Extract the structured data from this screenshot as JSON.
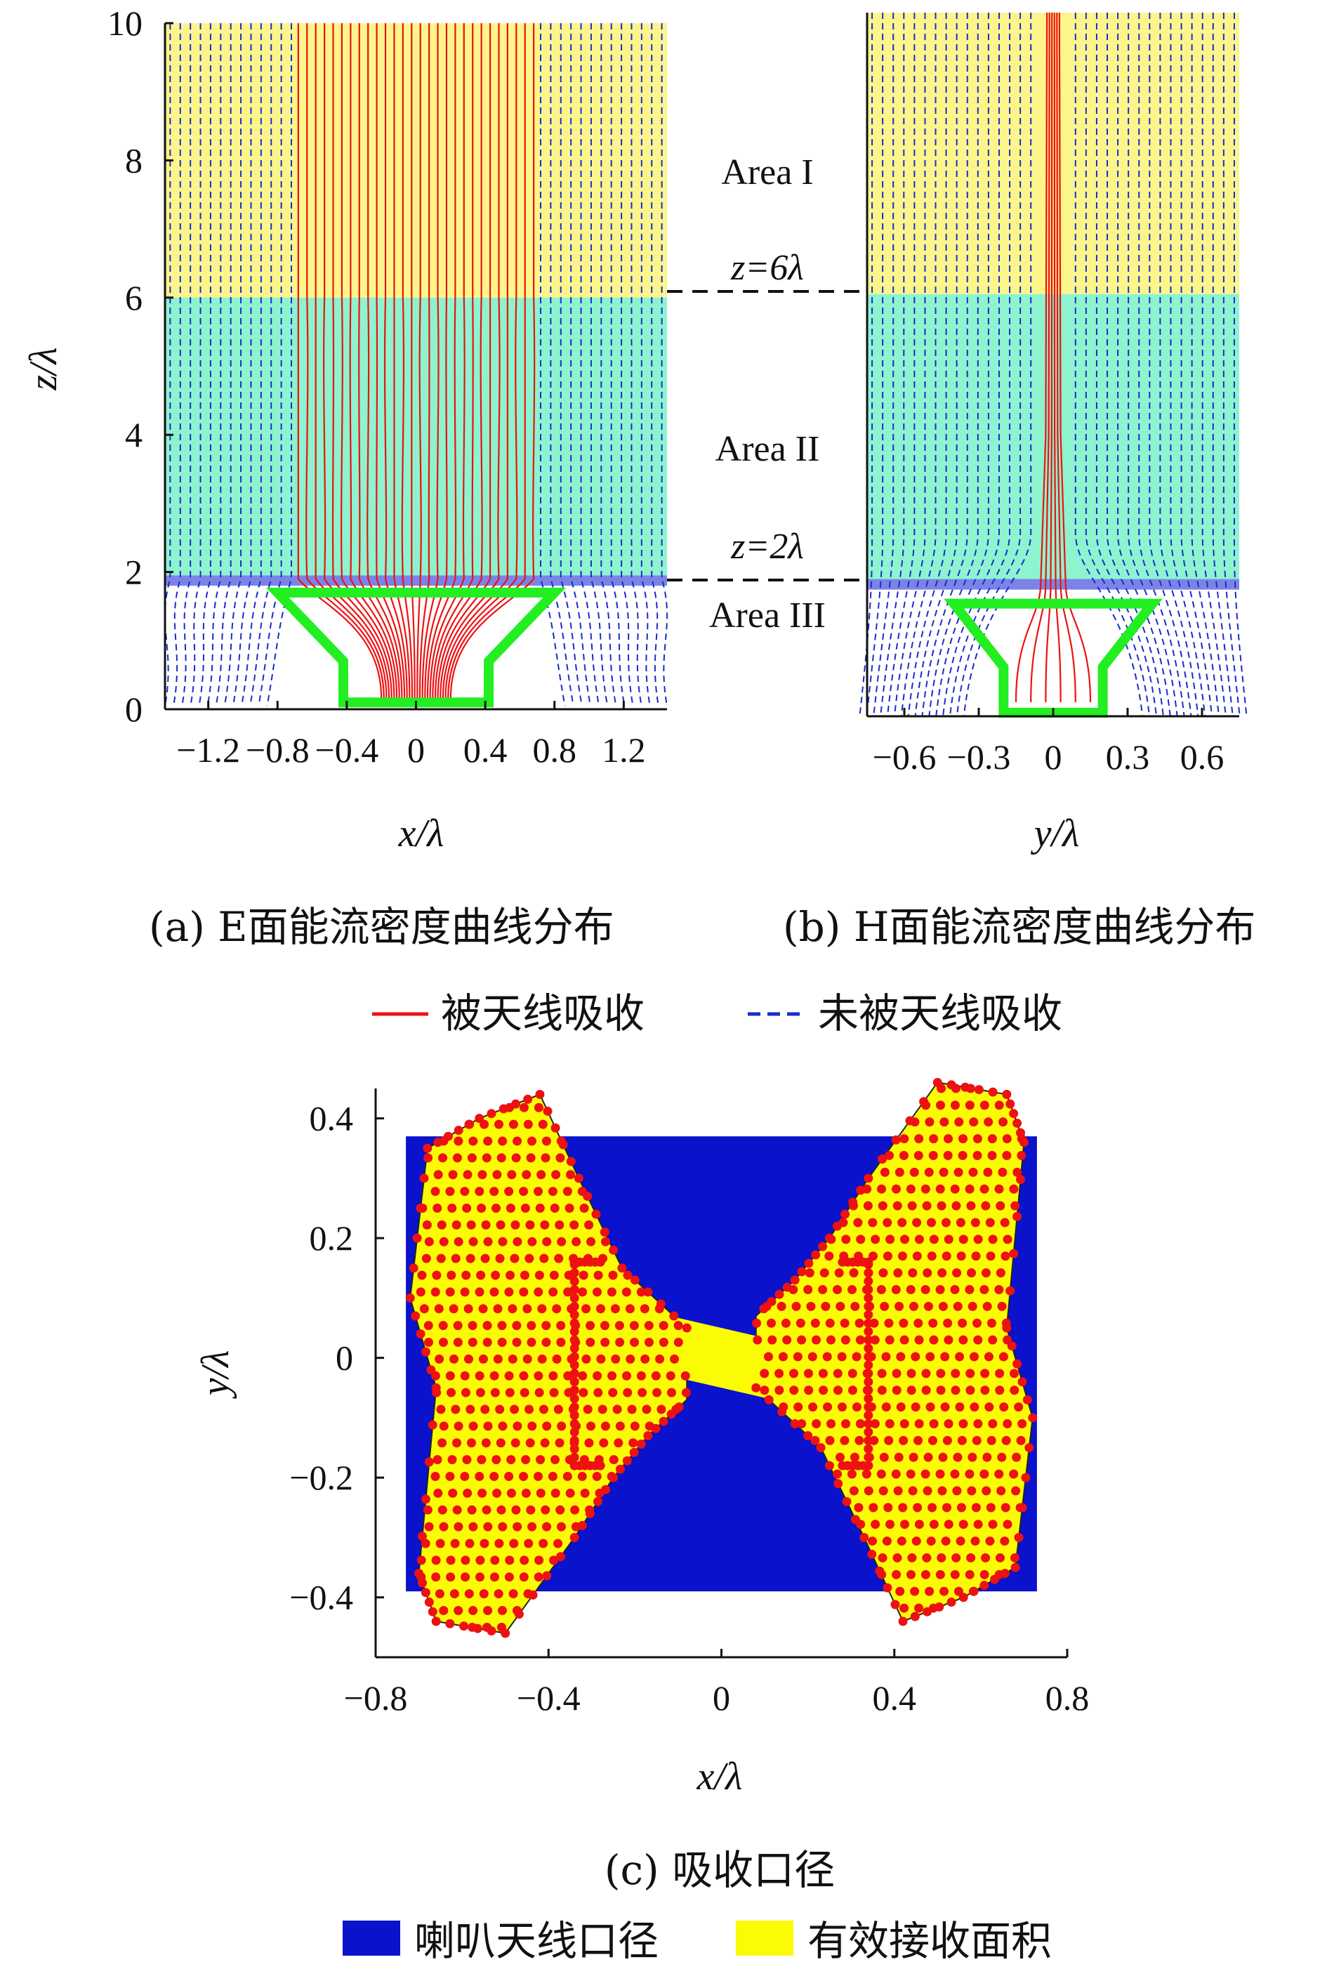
{
  "chart_data": [
    {
      "type": "streamline",
      "panel": "a",
      "caption": "(a) E面能流密度曲线分布",
      "xlabel": "x/λ",
      "ylabel": "z/λ",
      "xlim": [
        -1.45,
        1.45
      ],
      "ylim": [
        0,
        10
      ],
      "xticks": [
        "−1.2",
        "−0.8",
        "−0.4",
        "0",
        "0.4",
        "0.8",
        "1.2"
      ],
      "xtick_values": [
        -1.2,
        -0.8,
        -0.4,
        0,
        0.4,
        0.8,
        1.2
      ],
      "yticks": [
        "0",
        "2",
        "4",
        "6",
        "8",
        "10"
      ],
      "ytick_values": [
        0,
        2,
        4,
        6,
        8,
        10
      ],
      "areas": [
        {
          "name": "Area I",
          "z_range": [
            6,
            10
          ],
          "color": "#fbf58c"
        },
        {
          "name": "Area II",
          "z_range": [
            2,
            6
          ],
          "color": "#8ef3cf"
        },
        {
          "name": "Area III",
          "z_range": [
            0,
            2
          ],
          "color": "#ffffff"
        }
      ],
      "horn_outline_x": [
        -0.42,
        0.42,
        0.42,
        0.8,
        -0.8,
        -0.42
      ],
      "horn_outline_z": [
        0.1,
        0.1,
        0.7,
        1.7,
        1.7,
        0.7
      ],
      "absorbed_x_range": [
        -0.68,
        0.68
      ],
      "unabsorbed_x_range": [
        -1.45,
        1.45
      ]
    },
    {
      "type": "streamline",
      "panel": "b",
      "caption": "(b) H面能流密度曲线分布",
      "xlabel": "y/λ",
      "ylabel": "",
      "xlim": [
        -0.75,
        0.75
      ],
      "ylim": [
        0,
        10
      ],
      "xticks": [
        "−0.6",
        "−0.3",
        "0",
        "0.3",
        "0.6"
      ],
      "xtick_values": [
        -0.6,
        -0.3,
        0,
        0.3,
        0.6
      ],
      "annotations": [
        "z=6λ",
        "z=2λ"
      ],
      "horn_outline_x": [
        -0.2,
        0.2,
        0.2,
        0.4,
        -0.4,
        -0.2
      ],
      "horn_outline_z": [
        0.05,
        0.05,
        0.7,
        1.6,
        1.6,
        0.7
      ],
      "absorbed_x_range": [
        -0.05,
        0.05
      ],
      "unabsorbed_x_range": [
        -0.75,
        0.75
      ]
    },
    {
      "type": "scatter",
      "panel": "c",
      "caption": "(c) 吸收口径",
      "xlabel": "x/λ",
      "ylabel": "y/λ",
      "xlim": [
        -0.8,
        0.8
      ],
      "ylim": [
        -0.5,
        0.45
      ],
      "xticks": [
        "−0.8",
        "−0.4",
        "0",
        "0.4",
        "0.8"
      ],
      "xtick_values": [
        -0.8,
        -0.4,
        0,
        0.4,
        0.8
      ],
      "yticks": [
        "−0.4",
        "−0.2",
        "0",
        "0.2",
        "0.4"
      ],
      "ytick_values": [
        -0.4,
        -0.2,
        0,
        0.2,
        0.4
      ],
      "horn_aperture": {
        "x": [
          -0.73,
          0.73
        ],
        "y": [
          -0.39,
          0.37
        ],
        "color": "#0a12cc"
      },
      "effective_area_polygon_x": [
        -0.08,
        -0.23,
        -0.33,
        -0.42,
        -0.56,
        -0.68,
        -0.72,
        -0.66,
        -0.7,
        -0.66,
        -0.5,
        -0.34,
        -0.25,
        -0.17,
        -0.08
      ],
      "effective_area_polygon_y": [
        0.05,
        0.15,
        0.3,
        0.44,
        0.4,
        0.35,
        0.1,
        -0.05,
        -0.36,
        -0.44,
        -0.46,
        -0.3,
        -0.2,
        -0.13,
        -0.07
      ],
      "effective_area_color": "#fbfb05",
      "point_color": "#ee1111",
      "rect_left_x": [
        -0.34,
        -0.28
      ],
      "rect_right_x": [
        0.28,
        0.34
      ],
      "rect_y": [
        -0.18,
        0.16
      ]
    }
  ],
  "legend_top": {
    "absorbed": "被天线吸收",
    "unabsorbed": "未被天线吸收",
    "absorbed_color": "#ee1111",
    "unabsorbed_color": "#1a2ccc"
  },
  "legend_bottom": {
    "horn": "喇叭天线口径",
    "effective": "有效接收面积",
    "horn_color": "#0a12cc",
    "effective_color": "#fbfb05"
  }
}
